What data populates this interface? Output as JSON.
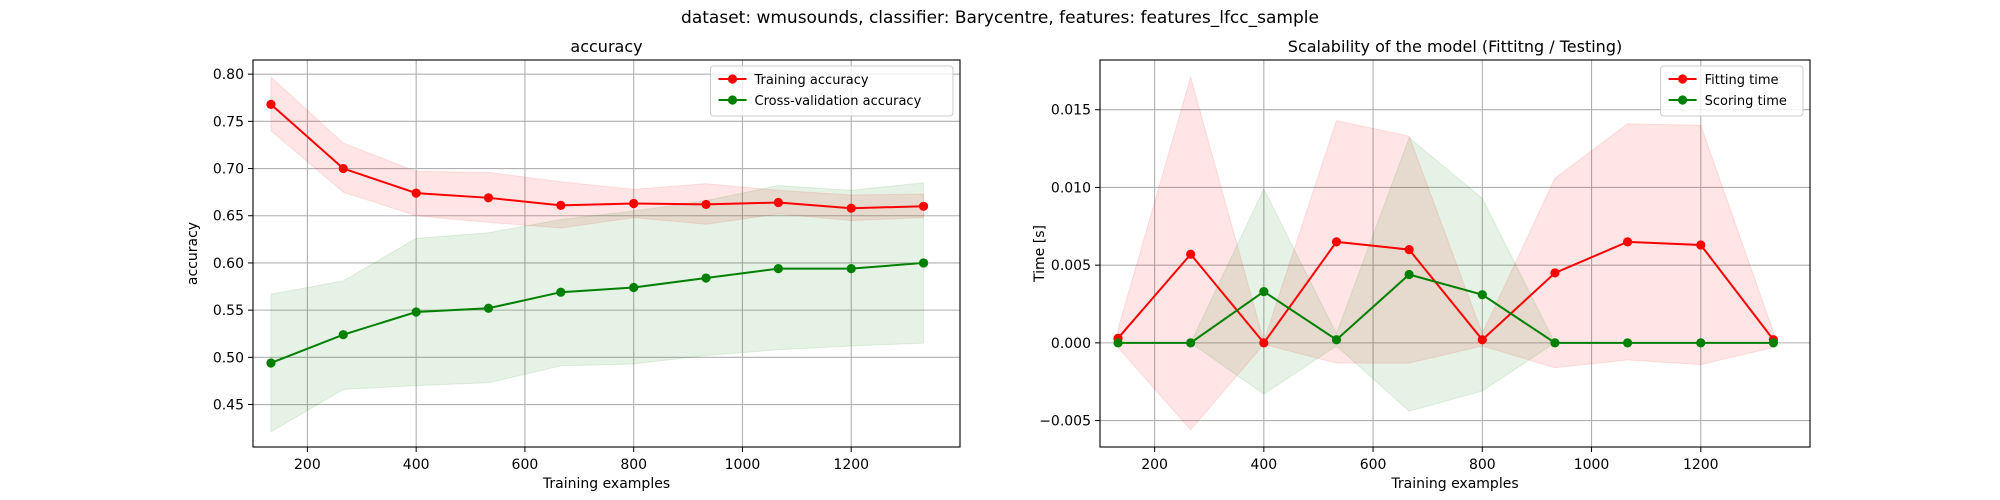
{
  "figure": {
    "suptitle": "dataset: wmusounds, classifier: Barycentre, features: features_lfcc_sample"
  },
  "chart_data": [
    {
      "type": "line",
      "title": "accuracy",
      "xlabel": "Training examples",
      "ylabel": "accuracy",
      "xlim": [
        100,
        1400
      ],
      "ylim": [
        0.405,
        0.815
      ],
      "xticks": [
        200,
        400,
        600,
        800,
        1000,
        1200
      ],
      "yticks": [
        0.45,
        0.5,
        0.55,
        0.6,
        0.65,
        0.7,
        0.75,
        0.8
      ],
      "ytick_format": 2,
      "grid": true,
      "legend_position": "top-right",
      "x": [
        133,
        266,
        400,
        533,
        666,
        800,
        933,
        1066,
        1200,
        1333
      ],
      "series": [
        {
          "name": "Training accuracy",
          "color": "#ff0000",
          "values": [
            0.768,
            0.7,
            0.674,
            0.669,
            0.661,
            0.663,
            0.662,
            0.664,
            0.658,
            0.66
          ],
          "band_lower": [
            0.74,
            0.675,
            0.65,
            0.643,
            0.637,
            0.648,
            0.641,
            0.652,
            0.645,
            0.648
          ],
          "band_upper": [
            0.797,
            0.727,
            0.697,
            0.696,
            0.686,
            0.678,
            0.684,
            0.677,
            0.672,
            0.673
          ]
        },
        {
          "name": "Cross-validation accuracy",
          "color": "#008000",
          "values": [
            0.494,
            0.524,
            0.548,
            0.552,
            0.569,
            0.574,
            0.584,
            0.594,
            0.594,
            0.6
          ],
          "band_lower": [
            0.421,
            0.466,
            0.47,
            0.473,
            0.491,
            0.493,
            0.502,
            0.508,
            0.512,
            0.515
          ],
          "band_upper": [
            0.567,
            0.581,
            0.626,
            0.632,
            0.646,
            0.655,
            0.666,
            0.682,
            0.677,
            0.685
          ]
        }
      ]
    },
    {
      "type": "line",
      "title": "Scalability of the model (Fittitng / Testing)",
      "xlabel": "Training examples",
      "ylabel": "Time [s]",
      "xlim": [
        100,
        1400
      ],
      "ylim": [
        -0.0067,
        0.0182
      ],
      "xticks": [
        200,
        400,
        600,
        800,
        1000,
        1200
      ],
      "yticks": [
        -0.005,
        0.0,
        0.005,
        0.01,
        0.015
      ],
      "ytick_format": 3,
      "grid": true,
      "legend_position": "top-right",
      "x": [
        133,
        266,
        400,
        533,
        666,
        800,
        933,
        1066,
        1200,
        1333
      ],
      "series": [
        {
          "name": "Fitting time",
          "color": "#ff0000",
          "values": [
            0.0003,
            0.0057,
            0.0,
            0.0065,
            0.006,
            0.0002,
            0.0045,
            0.0065,
            0.0063,
            0.0002
          ],
          "band_lower": [
            -0.0003,
            -0.0056,
            -0.0001,
            -0.0013,
            -0.0013,
            -0.0002,
            -0.0016,
            -0.0011,
            -0.0014,
            -0.0003
          ],
          "band_upper": [
            0.0009,
            0.0171,
            0.0001,
            0.0143,
            0.0133,
            0.0006,
            0.0106,
            0.0141,
            0.014,
            0.0007
          ]
        },
        {
          "name": "Scoring time",
          "color": "#008000",
          "values": [
            0.0,
            0.0,
            0.0033,
            0.0002,
            0.0044,
            0.0031,
            0.0,
            0.0,
            0.0,
            0.0
          ],
          "band_lower": [
            0.0,
            0.0,
            -0.0033,
            -0.0002,
            -0.0044,
            -0.0031,
            0.0,
            0.0,
            0.0,
            0.0
          ],
          "band_upper": [
            0.0,
            0.0,
            0.0099,
            0.0006,
            0.0132,
            0.0093,
            0.0,
            0.0,
            0.0,
            0.0
          ]
        }
      ]
    }
  ]
}
